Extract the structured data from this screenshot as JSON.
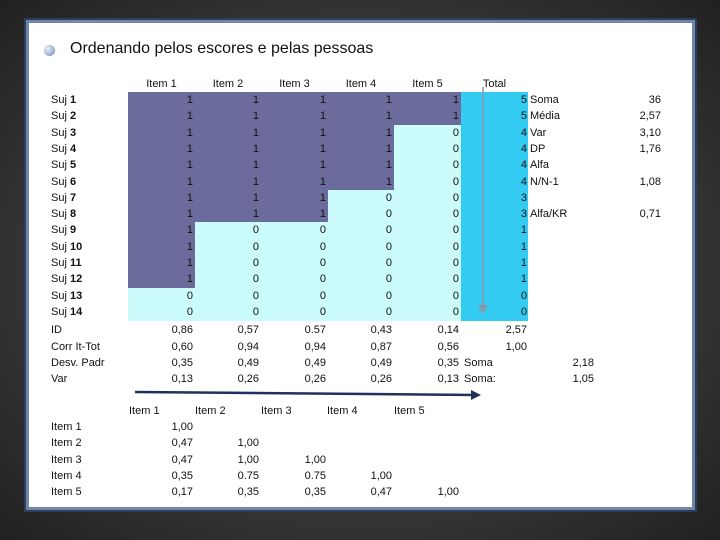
{
  "title": "Ordenando pelos escores e pelas pessoas",
  "items_header": [
    "Item 1",
    "Item 2",
    "Item 3",
    "Item 4",
    "Item 5"
  ],
  "total_header": "Total",
  "subjects": [
    {
      "label": "Suj 1",
      "values": [
        "1",
        "1",
        "1",
        "1",
        "1"
      ],
      "total": "5"
    },
    {
      "label": "Suj 2",
      "values": [
        "1",
        "1",
        "1",
        "1",
        "1"
      ],
      "total": "5"
    },
    {
      "label": "Suj 3",
      "values": [
        "1",
        "1",
        "1",
        "1",
        "0"
      ],
      "total": "4"
    },
    {
      "label": "Suj 4",
      "values": [
        "1",
        "1",
        "1",
        "1",
        "0"
      ],
      "total": "4"
    },
    {
      "label": "Suj 5",
      "values": [
        "1",
        "1",
        "1",
        "1",
        "0"
      ],
      "total": "4"
    },
    {
      "label": "Suj 6",
      "values": [
        "1",
        "1",
        "1",
        "1",
        "0"
      ],
      "total": "4"
    },
    {
      "label": "Suj 7",
      "values": [
        "1",
        "1",
        "1",
        "0",
        "0"
      ],
      "total": "3"
    },
    {
      "label": "Suj 8",
      "values": [
        "1",
        "1",
        "1",
        "0",
        "0"
      ],
      "total": "3"
    },
    {
      "label": "Suj 9",
      "values": [
        "1",
        "0",
        "0",
        "0",
        "0"
      ],
      "total": "1"
    },
    {
      "label": "Suj 10",
      "values": [
        "1",
        "0",
        "0",
        "0",
        "0"
      ],
      "total": "1"
    },
    {
      "label": "Suj 11",
      "values": [
        "1",
        "0",
        "0",
        "0",
        "0"
      ],
      "total": "1"
    },
    {
      "label": "Suj 12",
      "values": [
        "1",
        "0",
        "0",
        "0",
        "0"
      ],
      "total": "1"
    },
    {
      "label": "Suj 13",
      "values": [
        "0",
        "0",
        "0",
        "0",
        "0"
      ],
      "total": "0"
    },
    {
      "label": "Suj 14",
      "values": [
        "0",
        "0",
        "0",
        "0",
        "0"
      ],
      "total": "0"
    }
  ],
  "stats_side": [
    {
      "label": "Soma",
      "value": "36"
    },
    {
      "label": "Média",
      "value": "2,57"
    },
    {
      "label": "Var",
      "value": "3,10"
    },
    {
      "label": "DP",
      "value": "1,76"
    },
    {
      "label": "Alfa",
      "value": ""
    },
    {
      "label": "N/N-1",
      "value": "1,08"
    },
    {
      "label": "",
      "value": ""
    },
    {
      "label": "Alfa/KR",
      "value": "0,71"
    }
  ],
  "summary_rows": [
    {
      "label": "ID",
      "values": [
        "0,86",
        "0,57",
        "0.57",
        "0,43",
        "0,14"
      ],
      "extra": "2,57",
      "extra_label": "",
      "extra_value": ""
    },
    {
      "label": "Corr It-Tot",
      "values": [
        "0,60",
        "0,94",
        "0,94",
        "0,87",
        "0,56"
      ],
      "extra": "1,00",
      "extra_label": "",
      "extra_value": ""
    },
    {
      "label": "Desv. Padr",
      "values": [
        "0,35",
        "0,49",
        "0,49",
        "0,49",
        "0,35"
      ],
      "extra": "",
      "extra_label": "Soma",
      "extra_value": "2,18"
    },
    {
      "label": "Var",
      "values": [
        "0,13",
        "0,26",
        "0,26",
        "0,26",
        "0,13"
      ],
      "extra": "",
      "extra_label": "Soma:",
      "extra_value": "1,05"
    }
  ],
  "corr_header": [
    "Item 1",
    "Item 2",
    "Item 3",
    "Item 4",
    "Item 5"
  ],
  "corr_rows": [
    {
      "label": "Item 1",
      "values": [
        "1,00",
        "",
        "",
        "",
        ""
      ]
    },
    {
      "label": "Item 2",
      "values": [
        "0,47",
        "1,00",
        "",
        "",
        ""
      ]
    },
    {
      "label": "Item 3",
      "values": [
        "0,47",
        "1,00",
        "1,00",
        "",
        ""
      ]
    },
    {
      "label": "Item 4",
      "values": [
        "0,35",
        "0.75",
        "0.75",
        "1,00",
        ""
      ]
    },
    {
      "label": "Item 5",
      "values": [
        "0,17",
        "0,35",
        "0,35",
        "0,47",
        "1,00"
      ]
    }
  ],
  "colors": {
    "purple": "#6b6b9c",
    "cyan": "#ccfbfb",
    "blue": "#33cbf2"
  }
}
